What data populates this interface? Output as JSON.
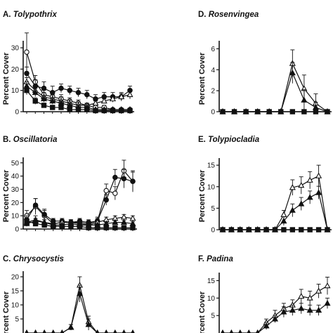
{
  "chart_data": [
    {
      "type": "line",
      "title": "Tolypothrix",
      "letter": "A.",
      "ylabel": "Percent Cover",
      "yticks": [
        0,
        10,
        20,
        30
      ],
      "ylim": [
        0,
        32
      ],
      "x": [
        1,
        2,
        3,
        4,
        5,
        6,
        7,
        8,
        9,
        10,
        11,
        12,
        13
      ],
      "series": [
        {
          "marker": "open-circle",
          "values": [
            28,
            14,
            8,
            7,
            6,
            5,
            4,
            3,
            2,
            2,
            1,
            1,
            1
          ],
          "err": [
            9,
            3,
            2,
            2,
            2,
            1.5,
            1.5,
            1,
            1,
            1,
            0.5,
            0.5,
            0.5
          ]
        },
        {
          "marker": "filled-circle",
          "values": [
            18,
            12,
            11,
            9,
            11,
            10,
            9,
            8,
            6,
            7,
            7,
            7,
            10
          ],
          "err": [
            3,
            3,
            3,
            3,
            2,
            2,
            2,
            2,
            2,
            2,
            2,
            2,
            2
          ]
        },
        {
          "marker": "open-triangle",
          "values": [
            14,
            10,
            7,
            6,
            5,
            4,
            3,
            3,
            4,
            5,
            6,
            7,
            8
          ],
          "err": [
            2,
            2,
            2,
            2,
            2,
            1.5,
            1.5,
            1,
            1,
            1,
            1.5,
            1.5,
            2
          ]
        },
        {
          "marker": "filled-triangle",
          "values": [
            12,
            9,
            6,
            5,
            4,
            3,
            2,
            2,
            1,
            1,
            1,
            1,
            1
          ],
          "err": [
            2,
            2,
            1.5,
            1.5,
            1,
            1,
            1,
            0.5,
            0.5,
            0.5,
            0.5,
            0.5,
            0.5
          ]
        },
        {
          "marker": "filled-square",
          "values": [
            10,
            5,
            3,
            2,
            2,
            1,
            1,
            1,
            0.5,
            0.5,
            0.5,
            0.5,
            0.5
          ],
          "err": [
            2,
            1.5,
            1,
            1,
            1,
            0.5,
            0.5,
            0.5,
            0.3,
            0.3,
            0.3,
            0.3,
            0.3
          ]
        }
      ]
    },
    {
      "type": "line",
      "title": "Oscillatoria",
      "letter": "B.",
      "ylabel": "Percent Cover",
      "yticks": [
        0,
        10,
        20,
        30,
        40,
        50
      ],
      "ylim": [
        0,
        52
      ],
      "x": [
        1,
        2,
        3,
        4,
        5,
        6,
        7,
        8,
        9,
        10,
        11,
        12,
        13
      ],
      "series": [
        {
          "marker": "open-circle",
          "values": [
            10,
            17,
            10,
            4,
            5,
            5,
            5,
            4,
            6,
            29,
            27,
            44,
            36
          ],
          "err": [
            4,
            6,
            4,
            2,
            2,
            2,
            2,
            2,
            3,
            5,
            5,
            8,
            8
          ]
        },
        {
          "marker": "filled-circle",
          "values": [
            7,
            18,
            11,
            6,
            6,
            5,
            6,
            5,
            6,
            22,
            39,
            38,
            36
          ],
          "err": [
            3,
            5,
            4,
            2,
            2,
            2,
            2,
            2,
            2,
            4,
            6,
            7,
            7
          ]
        },
        {
          "marker": "open-triangle",
          "values": [
            5,
            7,
            5,
            4,
            5,
            5,
            4,
            3,
            5,
            7,
            8,
            9,
            8
          ],
          "err": [
            2,
            3,
            2,
            2,
            2,
            2,
            2,
            1.5,
            2,
            2,
            2,
            2,
            2
          ]
        },
        {
          "marker": "filled-triangle",
          "values": [
            4,
            6,
            5,
            3,
            3,
            4,
            3,
            3,
            3,
            4,
            5,
            5,
            4
          ],
          "err": [
            2,
            2,
            2,
            1,
            1,
            1,
            1,
            1,
            1,
            1,
            1.5,
            1.5,
            1.5
          ]
        },
        {
          "marker": "filled-square",
          "values": [
            6,
            4,
            3,
            2,
            2,
            2,
            2,
            1,
            1,
            1,
            1,
            1,
            1
          ],
          "err": [
            2,
            1.5,
            1,
            1,
            1,
            1,
            1,
            0.5,
            0.5,
            0.5,
            0.5,
            0.5,
            0.5
          ]
        }
      ]
    },
    {
      "type": "line",
      "title": "Chrysocystis",
      "letter": "C.",
      "ylabel": "Percent Cover",
      "yticks": [
        5,
        10,
        15,
        20
      ],
      "ylim": [
        0,
        21
      ],
      "x": [
        1,
        2,
        3,
        4,
        5,
        6,
        7,
        8,
        9,
        10,
        11,
        12,
        13
      ],
      "series": [
        {
          "marker": "open-triangle",
          "values": [
            0,
            0,
            0,
            0,
            0,
            2,
            17,
            4,
            0,
            0,
            0,
            0,
            0
          ],
          "err": [
            0,
            0,
            0,
            0,
            0,
            1,
            3,
            2,
            0,
            0,
            0,
            0,
            0
          ]
        },
        {
          "marker": "filled-triangle",
          "values": [
            0,
            0,
            0,
            0,
            0,
            2,
            14,
            3,
            0,
            0,
            0,
            0,
            0
          ],
          "err": [
            0,
            0,
            0,
            0,
            0,
            1,
            3,
            2,
            0,
            0,
            0,
            0,
            0
          ]
        }
      ]
    },
    {
      "type": "line",
      "title": "Rosenvingea",
      "letter": "D.",
      "ylabel": "Percent Cover",
      "yticks": [
        0,
        2,
        4,
        6
      ],
      "ylim": [
        0,
        6.5
      ],
      "x": [
        1,
        2,
        3,
        4,
        5,
        6,
        7,
        8,
        9,
        10
      ],
      "series": [
        {
          "marker": "open-triangle",
          "values": [
            0,
            0,
            0,
            0,
            0,
            0,
            4.6,
            2.2,
            0.8,
            0
          ],
          "err": [
            0,
            0,
            0,
            0,
            0,
            0,
            1.3,
            1.3,
            0.9,
            0
          ]
        },
        {
          "marker": "filled-triangle",
          "values": [
            0,
            0,
            0,
            0,
            0,
            0,
            3.7,
            1.1,
            0.4,
            0
          ],
          "err": [
            0,
            0,
            0,
            0,
            0,
            0,
            1.0,
            1.0,
            0.5,
            0
          ]
        },
        {
          "marker": "filled-square",
          "values": [
            0,
            0,
            0,
            0,
            0,
            0,
            0,
            0,
            0,
            0
          ],
          "err": [
            0,
            0,
            0,
            0,
            0,
            0,
            0,
            0,
            0,
            0
          ]
        }
      ]
    },
    {
      "type": "line",
      "title": "Tolypiocladia",
      "letter": "E.",
      "ylabel": "Percent Cover",
      "yticks": [
        0,
        5,
        10,
        15
      ],
      "ylim": [
        0,
        16
      ],
      "x": [
        1,
        2,
        3,
        4,
        5,
        6,
        7,
        8,
        9,
        10,
        11,
        12,
        13
      ],
      "series": [
        {
          "marker": "open-triangle",
          "values": [
            0,
            0,
            0,
            0,
            0,
            0,
            0,
            3.5,
            9.8,
            10.3,
            11.5,
            12.5,
            0
          ],
          "err": [
            0,
            0,
            0,
            0,
            0,
            0,
            0,
            1,
            1.8,
            2,
            2,
            2.5,
            0
          ]
        },
        {
          "marker": "filled-triangle",
          "values": [
            0,
            0,
            0,
            0,
            0,
            0,
            0,
            2,
            4.5,
            6,
            7.5,
            8.6,
            0
          ],
          "err": [
            0,
            0,
            0,
            0,
            0,
            0,
            0,
            1,
            1.5,
            1.5,
            1.5,
            1.5,
            0
          ]
        },
        {
          "marker": "filled-square",
          "values": [
            0,
            0,
            0,
            0,
            0,
            0,
            0,
            0,
            0,
            0,
            0,
            0,
            0
          ],
          "err": [
            0,
            0,
            0,
            0,
            0,
            0,
            0,
            0,
            0,
            0,
            0,
            0,
            0
          ]
        }
      ]
    },
    {
      "type": "line",
      "title": "Padina",
      "letter": "F.",
      "ylabel": "Percent Cover",
      "yticks": [
        5,
        10,
        15
      ],
      "ylim": [
        0,
        16.5
      ],
      "x": [
        1,
        2,
        3,
        4,
        5,
        6,
        7,
        8,
        9,
        10,
        11,
        12,
        13
      ],
      "series": [
        {
          "marker": "open-triangle",
          "values": [
            0,
            0,
            0,
            0,
            0,
            3,
            5,
            7,
            8,
            10.5,
            10,
            12,
            13.5
          ],
          "err": [
            0,
            0,
            0,
            0,
            0,
            1,
            1.5,
            1.5,
            1.5,
            2,
            2,
            2,
            2.5
          ]
        },
        {
          "marker": "filled-triangle",
          "values": [
            0,
            0,
            0,
            0,
            0,
            2,
            4,
            6,
            6.5,
            7,
            6.5,
            6.5,
            8.5
          ],
          "err": [
            0,
            0,
            0,
            0,
            0,
            1,
            1,
            1.5,
            1.5,
            1.5,
            1.5,
            1.5,
            1.5
          ]
        }
      ]
    }
  ]
}
